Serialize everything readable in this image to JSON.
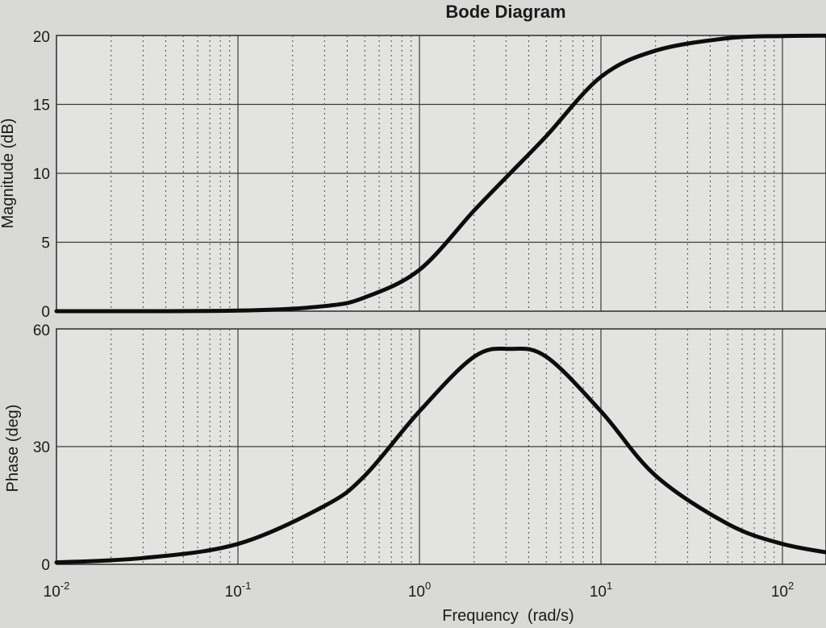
{
  "chart_data": {
    "type": "line",
    "title": "Bode Diagram",
    "xlabel": "Frequency  (rad/s)",
    "xscale": "log",
    "xlim": [
      0.01,
      200
    ],
    "x_ticks": [
      {
        "base": "10",
        "exp": "-2"
      },
      {
        "base": "10",
        "exp": "-1"
      },
      {
        "base": "10",
        "exp": "0"
      },
      {
        "base": "10",
        "exp": "1"
      },
      {
        "base": "10",
        "exp": "2"
      }
    ],
    "grid": true,
    "subplots": [
      {
        "name": "magnitude",
        "ylabel": "Magnitude (dB)",
        "ylim": [
          0,
          20
        ],
        "y_ticks": [
          "0",
          "5",
          "10",
          "15",
          "20"
        ],
        "x": [
          0.01,
          0.1,
          0.3,
          0.5,
          1,
          2,
          3.16,
          5,
          10,
          20,
          50,
          100,
          200
        ],
        "y": [
          0.0,
          0.04,
          0.37,
          1.0,
          3.0,
          7.3,
          10.0,
          12.7,
          17.0,
          18.9,
          19.8,
          19.96,
          19.99
        ]
      },
      {
        "name": "phase",
        "ylabel": "Phase (deg)",
        "ylim": [
          0,
          60
        ],
        "y_ticks": [
          "0",
          "30",
          "60"
        ],
        "x": [
          0.01,
          0.03,
          0.1,
          0.3,
          0.5,
          1,
          2,
          3.16,
          5,
          10,
          20,
          50,
          100,
          200
        ],
        "y": [
          0.5,
          1.6,
          5.2,
          14.9,
          22.6,
          39.0,
          52.9,
          54.9,
          52.9,
          39.0,
          22.6,
          10.3,
          5.2,
          2.6
        ]
      }
    ]
  }
}
